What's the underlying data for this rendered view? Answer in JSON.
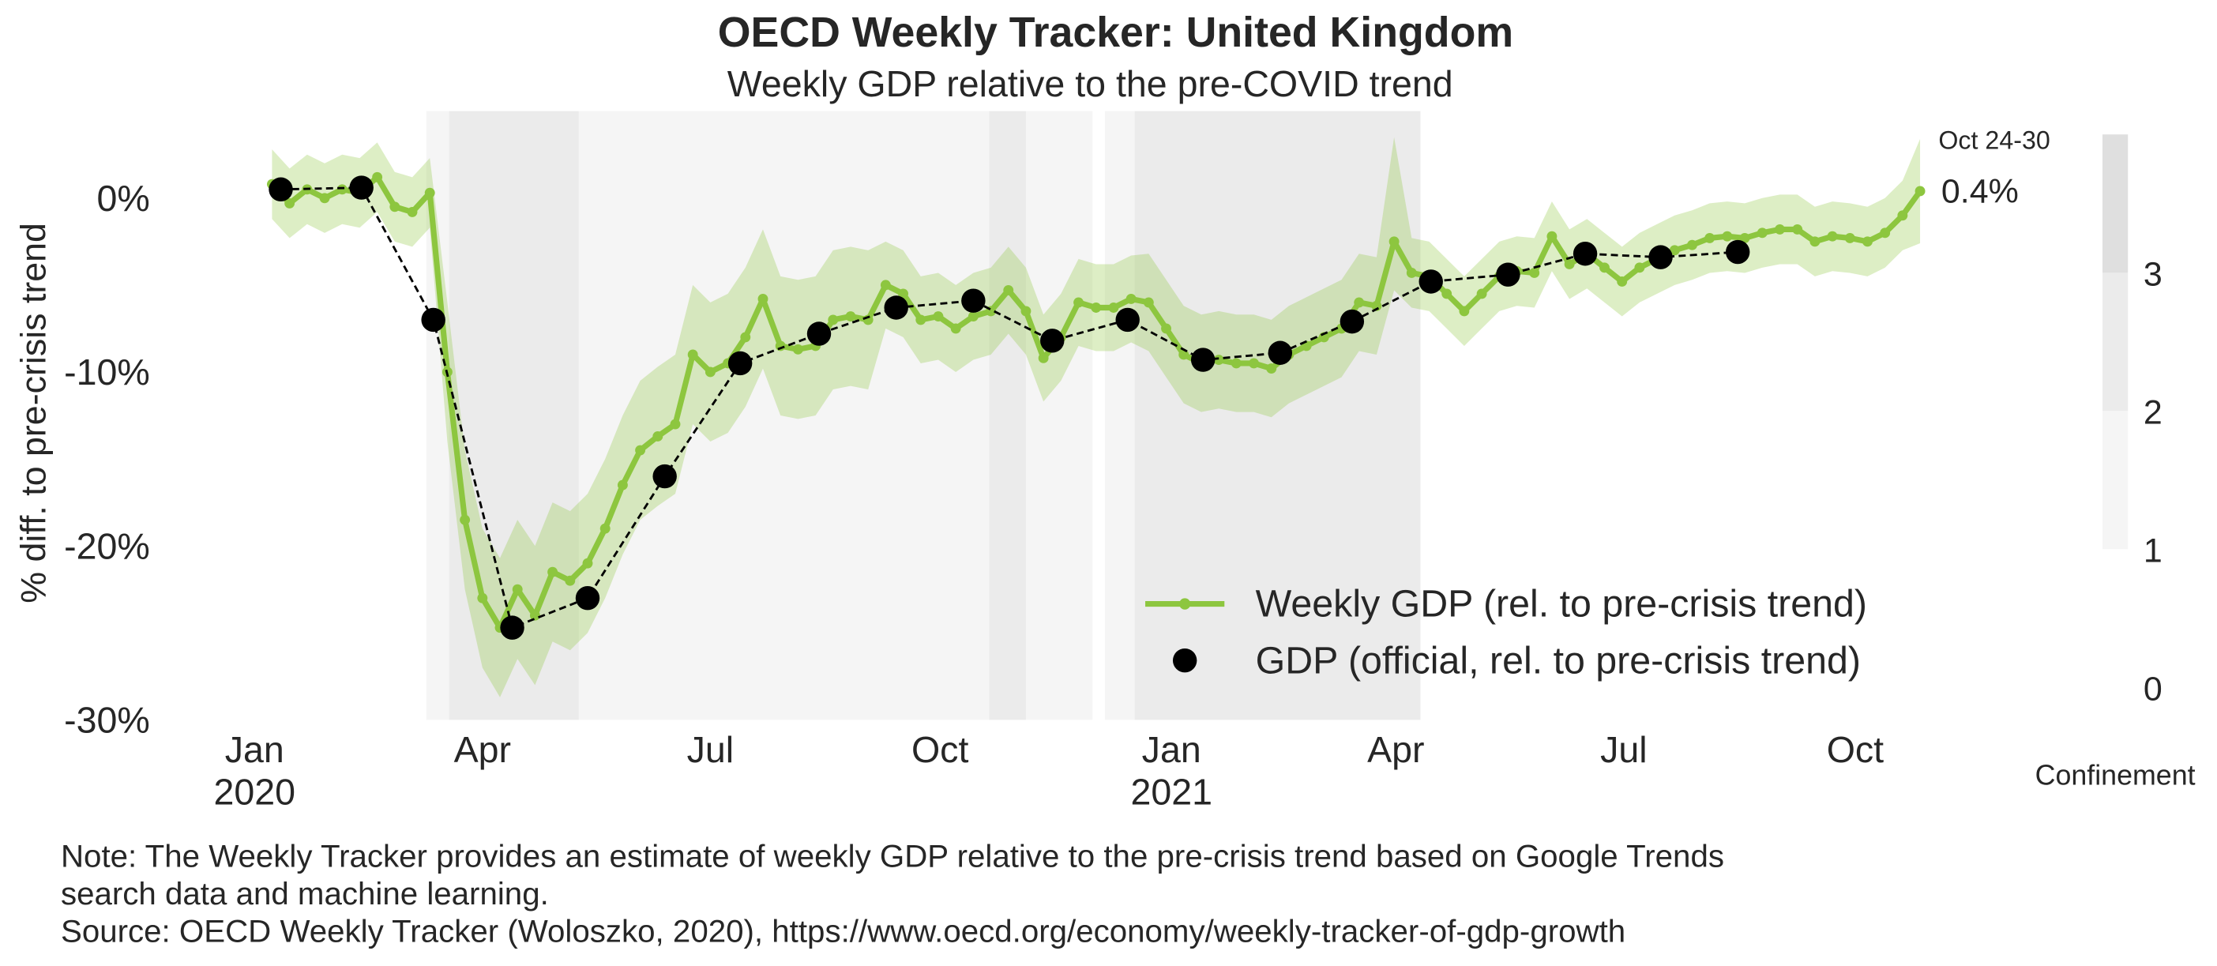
{
  "chart_data": {
    "type": "line",
    "title": "OECD Weekly Tracker: United Kingdom",
    "subtitle": "Weekly GDP relative to the pre-COVID trend",
    "y_label": "% diff. to pre-crisis trend",
    "xlim": [
      -2.5,
      96.5
    ],
    "xticks": [
      {
        "value": 0,
        "label": "Jan\n2020"
      },
      {
        "value": 13,
        "label": "Apr"
      },
      {
        "value": 26,
        "label": "Jul"
      },
      {
        "value": 39.1,
        "label": "Oct"
      },
      {
        "value": 52.3,
        "label": "Jan\n2021"
      },
      {
        "value": 65.1,
        "label": "Apr"
      },
      {
        "value": 78.1,
        "label": "Jul"
      },
      {
        "value": 91.3,
        "label": "Oct"
      }
    ],
    "ylim": [
      -30,
      5
    ],
    "yticks": [
      {
        "value": 0,
        "label": "0%"
      },
      {
        "value": -10,
        "label": "-10%"
      },
      {
        "value": -20,
        "label": "-20%"
      },
      {
        "value": -30,
        "label": "-30%"
      }
    ],
    "series": [
      {
        "name": "Weekly GDP (rel. to pre-crisis trend)",
        "color": "#8dc63f",
        "x": [
          1,
          2,
          3,
          4,
          5,
          6,
          7,
          8,
          9,
          10,
          11,
          12,
          13,
          14,
          15,
          16,
          17,
          18,
          19,
          20,
          21,
          22,
          23,
          24,
          25,
          26,
          27,
          28,
          29,
          30,
          31,
          32,
          33,
          34,
          35,
          36,
          37,
          38,
          39,
          40,
          41,
          42,
          43,
          44,
          45,
          46,
          47,
          48,
          49,
          50,
          51,
          52,
          53,
          54,
          55,
          56,
          57,
          58,
          59,
          60,
          61,
          62,
          63,
          64,
          65,
          66,
          67,
          68,
          69,
          70,
          71,
          72,
          73,
          74,
          75,
          76,
          77,
          78,
          79,
          80,
          81,
          82,
          83,
          84,
          85,
          86,
          87,
          88,
          89,
          90,
          91,
          92,
          93,
          94,
          95
        ],
        "values": [
          0.8,
          -0.3,
          0.5,
          0,
          0.5,
          0.3,
          1.2,
          -0.5,
          -0.8,
          0.3,
          -10,
          -18.5,
          -23,
          -24.7,
          -22.5,
          -24,
          -21.5,
          -22,
          -21,
          -19,
          -16.5,
          -14.5,
          -13.7,
          -13,
          -9,
          -10,
          -9.5,
          -8,
          -5.8,
          -8.5,
          -8.7,
          -8.5,
          -7,
          -6.8,
          -7,
          -5,
          -5.5,
          -7,
          -6.8,
          -7.5,
          -6.8,
          -6.5,
          -5.3,
          -6.5,
          -9.2,
          -8,
          -6,
          -6.3,
          -6.3,
          -5.8,
          -6,
          -7.5,
          -9,
          -9.5,
          -9.3,
          -9.5,
          -9.5,
          -9.8,
          -9,
          -8.5,
          -8,
          -7.5,
          -6,
          -6.2,
          -2.5,
          -4.3,
          -4.5,
          -5.5,
          -6.5,
          -5.5,
          -4.5,
          -4.2,
          -4.3,
          -2.2,
          -3.8,
          -3.2,
          -4,
          -4.8,
          -4,
          -3.5,
          -3,
          -2.7,
          -2.3,
          -2.2,
          -2.3,
          -2,
          -1.8,
          -1.8,
          -2.5,
          -2.2,
          -2.3,
          -2.5,
          -2,
          -1,
          0.4
        ],
        "upper": [
          2.8,
          1.7,
          2.5,
          2,
          2.5,
          2.3,
          3.2,
          1.5,
          1.2,
          2.3,
          -6,
          -14.5,
          -19,
          -20.7,
          -18.5,
          -20,
          -17.5,
          -18,
          -17,
          -15,
          -12.5,
          -10.5,
          -9.7,
          -9,
          -5,
          -6,
          -5.5,
          -4,
          -1.8,
          -4.5,
          -4.7,
          -4.5,
          -3,
          -2.8,
          -3,
          -2.5,
          -3,
          -4.5,
          -4.3,
          -5,
          -4.3,
          -4,
          -2.8,
          -4,
          -6.7,
          -5.5,
          -3.5,
          -3.8,
          -3.8,
          -3.3,
          -3.2,
          -4.7,
          -6.2,
          -6.7,
          -6.5,
          -6.7,
          -6.7,
          -7,
          -6.2,
          -5.7,
          -5.2,
          -4.7,
          -3.2,
          -3.4,
          3.5,
          -2.3,
          -2.5,
          -3.5,
          -4.5,
          -3.5,
          -2.5,
          -2.2,
          -2.3,
          -0.2,
          -1.8,
          -1.2,
          -2,
          -2.8,
          -2,
          -1.5,
          -1,
          -0.7,
          -0.3,
          -0.2,
          -0.3,
          0,
          0.2,
          0.2,
          -0.5,
          -0.2,
          -0.3,
          -0.5,
          0,
          1,
          3.4
        ],
        "lower": [
          -1.2,
          -2.3,
          -1.5,
          -2,
          -1.5,
          -1.7,
          -0.8,
          -2.5,
          -2.8,
          -1.7,
          -14,
          -22.5,
          -27,
          -28.7,
          -26.5,
          -28,
          -25.5,
          -26,
          -25,
          -23,
          -20.5,
          -18.5,
          -17.7,
          -17,
          -13,
          -14,
          -13.5,
          -12,
          -9.8,
          -12.5,
          -12.7,
          -12.5,
          -11,
          -10.8,
          -11,
          -7.5,
          -8,
          -9.5,
          -9.3,
          -10,
          -9.3,
          -9,
          -7.8,
          -9,
          -11.7,
          -10.5,
          -8.5,
          -8.8,
          -8.8,
          -8.3,
          -8.8,
          -10.3,
          -11.8,
          -12.3,
          -12.1,
          -12.3,
          -12.3,
          -12.6,
          -11.8,
          -11.3,
          -10.8,
          -10.3,
          -8.8,
          -9,
          -5.3,
          -6.3,
          -6.5,
          -7.5,
          -8.5,
          -7.5,
          -6.5,
          -6.2,
          -6.3,
          -4.2,
          -5.8,
          -5.2,
          -6,
          -6.8,
          -6,
          -5.5,
          -5,
          -4.7,
          -4.3,
          -4.2,
          -4.3,
          -4,
          -3.8,
          -3.8,
          -4.5,
          -4.2,
          -4.3,
          -4.5,
          -4,
          -3,
          -2.6
        ]
      },
      {
        "name": "GDP (official, rel. to pre-crisis trend)",
        "color": "#000000",
        "x": [
          1.5,
          6.1,
          10.2,
          14.7,
          19,
          23.4,
          27.7,
          32.2,
          36.6,
          41,
          45.5,
          49.8,
          54.1,
          58.5,
          62.6,
          67.1,
          71.5,
          75.9,
          80.2,
          84.6
        ],
        "values": [
          0.5,
          0.6,
          -7,
          -24.7,
          -23,
          -16,
          -9.5,
          -7.8,
          -6.3,
          -5.9,
          -8.2,
          -7,
          -9.3,
          -8.9,
          -7.1,
          -4.8,
          -4.4,
          -3.2,
          -3.4,
          -3.1
        ]
      }
    ],
    "annotations": [
      "Oct 24-30",
      "0.4%"
    ],
    "confinement": {
      "label": "Confinement",
      "lim": [
        0,
        4
      ],
      "ticks": [
        0,
        1,
        2,
        3
      ],
      "colors": [
        "#ffffff",
        "#f5f5f5",
        "#ebebeb",
        "#dfdfdf"
      ],
      "periods": [
        {
          "start": 9.8,
          "end": 11.1,
          "level": 1
        },
        {
          "start": 11.1,
          "end": 18.5,
          "level": 2
        },
        {
          "start": 18.5,
          "end": 41.9,
          "level": 1
        },
        {
          "start": 41.9,
          "end": 44,
          "level": 2
        },
        {
          "start": 44,
          "end": 47.8,
          "level": 1
        },
        {
          "start": 48.5,
          "end": 50.2,
          "level": 1
        },
        {
          "start": 50.2,
          "end": 66.5,
          "level": 2
        }
      ]
    },
    "notes": [
      "Note: The Weekly Tracker provides an estimate of weekly GDP relative to the pre-crisis trend based on Google Trends",
      "search data and machine learning.",
      "Source: OECD Weekly Tracker (Woloszko, 2020), https://www.oecd.org/economy/weekly-tracker-of-gdp-growth"
    ]
  }
}
